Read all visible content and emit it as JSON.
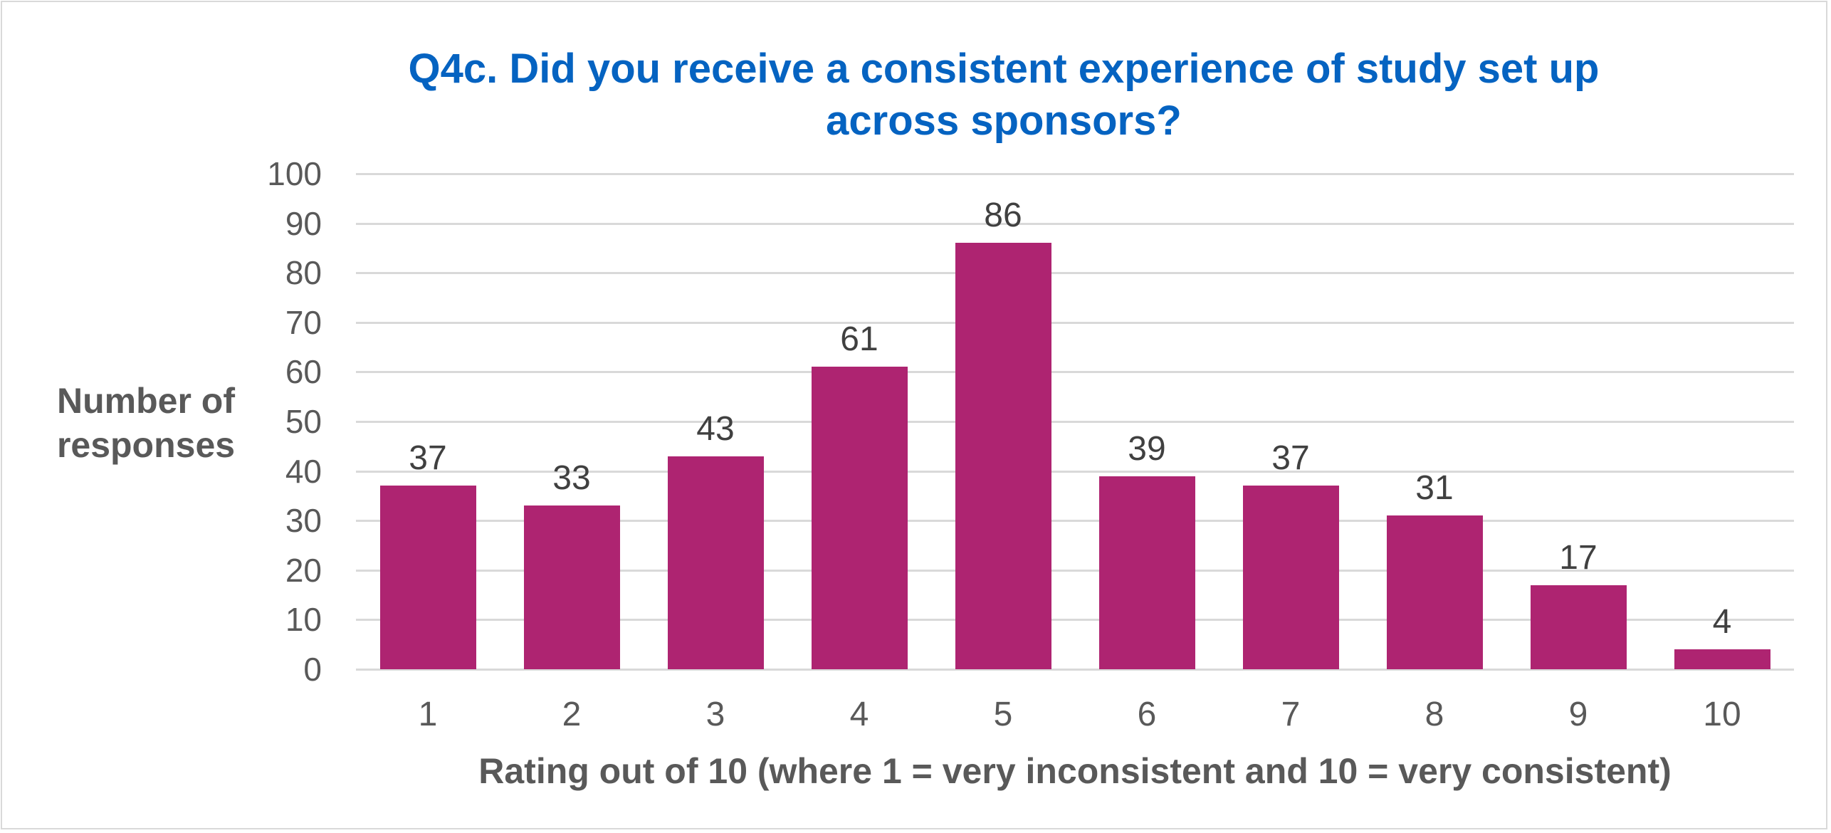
{
  "chart_data": {
    "type": "bar",
    "title": "Q4c. Did you receive a consistent experience of study set up across sponsors?",
    "title_lines": [
      "Q4c. Did you receive a consistent experience of study set up",
      "across sponsors?"
    ],
    "xlabel": "Rating out of 10 (where 1 = very inconsistent and 10 = very consistent)",
    "ylabel": "Number of responses",
    "ylabel_lines": [
      "Number of",
      "responses"
    ],
    "categories": [
      "1",
      "2",
      "3",
      "4",
      "5",
      "6",
      "7",
      "8",
      "9",
      "10"
    ],
    "values": [
      37,
      33,
      43,
      61,
      86,
      39,
      37,
      31,
      17,
      4
    ],
    "ylim": [
      0,
      100
    ],
    "yticks": [
      "100",
      "90",
      "80",
      "70",
      "60",
      "50",
      "40",
      "30",
      "20",
      "10",
      "0"
    ],
    "grid": true,
    "legend": null,
    "data_labels": true,
    "colors": {
      "bar": "#ae2471",
      "title": "#0563c1",
      "axis_text": "#595959",
      "gridline": "#d9d9d9"
    }
  }
}
